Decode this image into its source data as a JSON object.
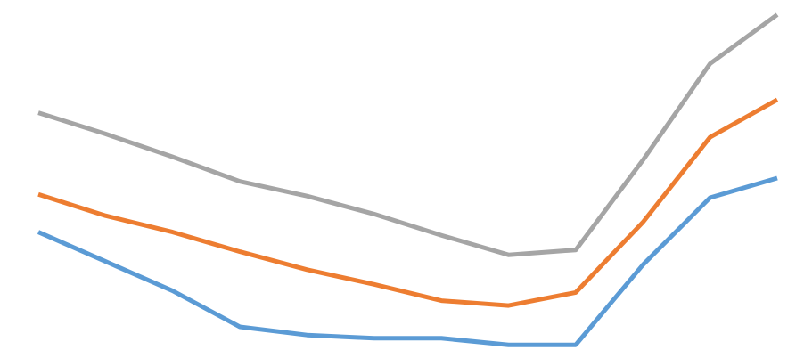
{
  "chart_data": {
    "type": "line",
    "x": [
      1,
      2,
      3,
      4,
      5,
      6,
      7,
      8,
      9,
      10,
      11,
      12
    ],
    "ylim": [
      0,
      100
    ],
    "grid": false,
    "series": [
      {
        "color": "#5B9BD5",
        "values": [
          35,
          26,
          17,
          6,
          3.5,
          2.5,
          2.5,
          0.5,
          0.5,
          25,
          45.5,
          51.5
        ]
      },
      {
        "color": "#ED7D31",
        "values": [
          46.5,
          40,
          35,
          29,
          23.5,
          19,
          14,
          12.5,
          16.5,
          38,
          64,
          75.5
        ]
      },
      {
        "color": "#A5A5A5",
        "values": [
          71.5,
          65,
          58,
          50.5,
          46,
          40.5,
          34,
          28,
          29.5,
          57,
          86.5,
          101.5
        ]
      }
    ]
  }
}
